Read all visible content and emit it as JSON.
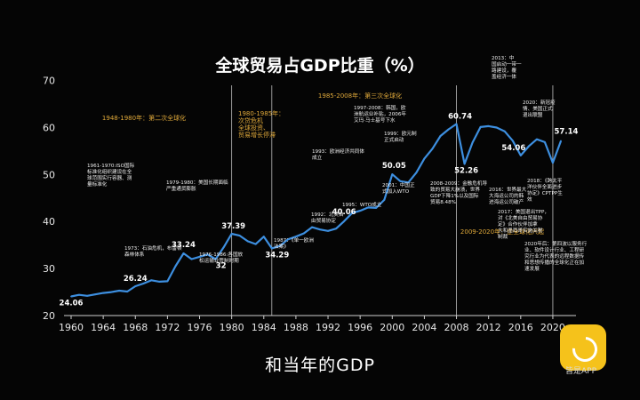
{
  "chart_data": {
    "type": "line",
    "title": "全球贸易占GDP比重（%）",
    "x": [
      1960,
      1961,
      1962,
      1963,
      1964,
      1965,
      1966,
      1967,
      1968,
      1969,
      1970,
      1971,
      1972,
      1973,
      1974,
      1975,
      1976,
      1977,
      1978,
      1979,
      1980,
      1981,
      1982,
      1983,
      1984,
      1985,
      1986,
      1987,
      1988,
      1989,
      1990,
      1991,
      1992,
      1993,
      1994,
      1995,
      1996,
      1997,
      1998,
      1999,
      2000,
      2001,
      2002,
      2003,
      2004,
      2005,
      2006,
      2007,
      2008,
      2009,
      2010,
      2011,
      2012,
      2013,
      2014,
      2015,
      2016,
      2017,
      2018,
      2019,
      2020,
      2021
    ],
    "y": [
      24.06,
      24.4,
      24.2,
      24.5,
      24.8,
      25.0,
      25.3,
      25.1,
      26.24,
      26.8,
      27.5,
      27.2,
      27.3,
      30.5,
      33.24,
      32.0,
      32.5,
      33.0,
      32.0,
      34.5,
      37.39,
      37.0,
      35.8,
      35.2,
      36.8,
      34.29,
      34.8,
      36.2,
      36.8,
      37.5,
      38.8,
      38.3,
      38.0,
      38.5,
      40.06,
      41.8,
      42.3,
      43.0,
      42.9,
      44.6,
      50.05,
      48.6,
      48.3,
      50.4,
      53.4,
      55.5,
      58.2,
      59.6,
      60.74,
      52.26,
      56.8,
      60.1,
      60.3,
      60.0,
      59.2,
      57.2,
      54.06,
      56.0,
      57.5,
      56.9,
      52.5,
      57.14
    ],
    "xticks": [
      1960,
      1964,
      1968,
      1972,
      1976,
      1980,
      1984,
      1988,
      1992,
      1996,
      2000,
      2004,
      2008,
      2012,
      2016,
      2020
    ],
    "yticks": [
      20,
      30,
      40,
      50,
      60,
      70
    ],
    "ylim": [
      20,
      72
    ],
    "xlim": [
      1960,
      2022
    ],
    "grid": false,
    "line_color": "#3d8fe0",
    "period_lines": [
      1980,
      1985,
      2008,
      2020
    ],
    "value_labels": [
      {
        "year": 1960,
        "value": 24.06,
        "text": "24.06"
      },
      {
        "year": 1968,
        "value": 26.24,
        "text": "26.24"
      },
      {
        "year": 1974,
        "value": 33.24,
        "text": "33.24"
      },
      {
        "year": 1978,
        "value": 32.0,
        "text": "32"
      },
      {
        "year": 1980,
        "value": 37.39,
        "text": "37.39"
      },
      {
        "year": 1985,
        "value": 34.29,
        "text": "34.29"
      },
      {
        "year": 1994,
        "value": 40.06,
        "text": "40.06"
      },
      {
        "year": 2000,
        "value": 50.05,
        "text": "50.05"
      },
      {
        "year": 2008,
        "value": 60.74,
        "text": "60.74"
      },
      {
        "year": 2009,
        "value": 52.26,
        "text": "52.26"
      },
      {
        "year": 2016,
        "value": 54.06,
        "text": "54.06"
      },
      {
        "year": 2021,
        "value": 57.14,
        "text": "57.14"
      }
    ],
    "period_labels": [
      {
        "text": "1948-1980年：第二次全球化"
      },
      {
        "text": "1985-2008年：第三次全球化"
      },
      {
        "text": "2009-2020年：逆全球化兴起"
      }
    ],
    "annotations": [
      {
        "id": "a1961",
        "lines": [
          "1961-1970:ISO国际",
          "标准化组织建设在全",
          "球范围实行容器、测",
          "量标准化"
        ]
      },
      {
        "id": "a1973",
        "lines": [
          "1973：石油危机，布雷顿",
          "森林体系"
        ]
      },
      {
        "id": "a1979",
        "lines": [
          "1979-1980：美国长期面临",
          "严重通货膨胀"
        ]
      },
      {
        "id": "a1980",
        "lines": [
          "1980-1985年：",
          "次贷危机",
          "全球投资、",
          "贸易增长停滞"
        ]
      },
      {
        "id": "a1976",
        "lines": [
          "1976-1986:各国放",
          "松运输业管制时期"
        ]
      },
      {
        "id": "a1987",
        "lines": [
          "1987：《单一欧洲",
          "法案》"
        ]
      },
      {
        "id": "a1993",
        "lines": [
          "1993：欧洲经济共同体",
          "成立"
        ]
      },
      {
        "id": "a1992",
        "lines": [
          "1992：北美自",
          "由贸易协定"
        ]
      },
      {
        "id": "a1995",
        "lines": [
          "1995：WTO成立"
        ]
      },
      {
        "id": "a1997",
        "lines": [
          "1997-2008：韩国，欧",
          "洲航运业补贴，2006年",
          "艾玛·马士基号下水"
        ]
      },
      {
        "id": "a1999",
        "lines": [
          "1999：欧元制",
          "正式启动"
        ]
      },
      {
        "id": "a2001",
        "lines": [
          "2001：中国正",
          "式加入WTO"
        ]
      },
      {
        "id": "a2008",
        "lines": [
          "2008-2009：金融危机导",
          "致的贸易大崩溃，世界",
          "GDP下降1%以及国际",
          "贸易8.48%"
        ]
      },
      {
        "id": "a2013",
        "lines": [
          "2013：中",
          "国启动一带一",
          "路建设，覆",
          "盖经济一体"
        ]
      },
      {
        "id": "a2016",
        "lines": [
          "2016：世界最大",
          "大海运公司的韩",
          "进海运公司破产"
        ]
      },
      {
        "id": "a2017",
        "lines": [
          "2017：美国退出TPP，",
          "对《北美自由贸易协",
          "定》合作伙伴加拿",
          "大和墨西哥实施关税",
          "制裁"
        ]
      },
      {
        "id": "a2020a",
        "lines": [
          "2020：新冠疫",
          "情、美国正式",
          "退出联盟"
        ]
      },
      {
        "id": "a2018",
        "lines": [
          "2018：《跨太平",
          "洋伙伴全面进步",
          "协定》CPTPP生",
          "效"
        ]
      },
      {
        "id": "a2020b",
        "lines": [
          "2020年后：第四波以服务行",
          "业、软件设计行业、工程研",
          "究行业为代表的远程数据传",
          "和思想传播的全球化正在加",
          "速发展"
        ]
      }
    ]
  },
  "subtitle": "和当年的GDP",
  "app": {
    "logo_icon": "app-logo-icon",
    "logo_text": "皆是APP",
    "logo_color": "#f5c21b"
  }
}
